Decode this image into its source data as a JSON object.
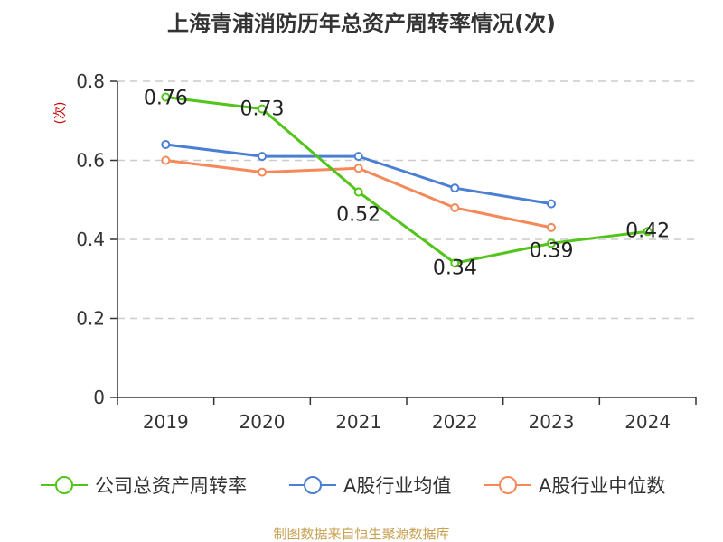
{
  "chart_data": {
    "type": "line",
    "title": "上海青浦消防历年总资产周转率情况(次)",
    "ylabel": "(次)",
    "xlabel": "",
    "categories": [
      "2019",
      "2020",
      "2021",
      "2022",
      "2023",
      "2024"
    ],
    "ylim": [
      0,
      0.8
    ],
    "yticks": [
      0,
      0.2,
      0.4,
      0.6,
      0.8
    ],
    "ytick_labels": [
      "0",
      "0.2",
      "0.4",
      "0.6",
      "0.8"
    ],
    "grid": true,
    "legend_position": "bottom",
    "series": [
      {
        "name": "公司总资产周转率",
        "color": "#52c41a",
        "values": [
          0.76,
          0.73,
          0.52,
          0.34,
          0.39,
          0.42
        ],
        "labels": [
          "0.76",
          "0.73",
          "0.52",
          "0.34",
          "0.39",
          "0.42"
        ],
        "show_labels": true
      },
      {
        "name": "A股行业均值",
        "color": "#4a7fd4",
        "values": [
          0.64,
          0.61,
          0.61,
          0.53,
          0.49,
          null
        ],
        "show_labels": false
      },
      {
        "name": "A股行业中位数",
        "color": "#f5895a",
        "values": [
          0.6,
          0.57,
          0.58,
          0.48,
          0.43,
          null
        ],
        "show_labels": false
      }
    ],
    "source": "制图数据来自恒生聚源数据库",
    "colors": {
      "title": "#333333",
      "ylabel": "#cc0000",
      "source": "#c8a050",
      "grid": "#cccccc",
      "axis": "#333333"
    }
  }
}
